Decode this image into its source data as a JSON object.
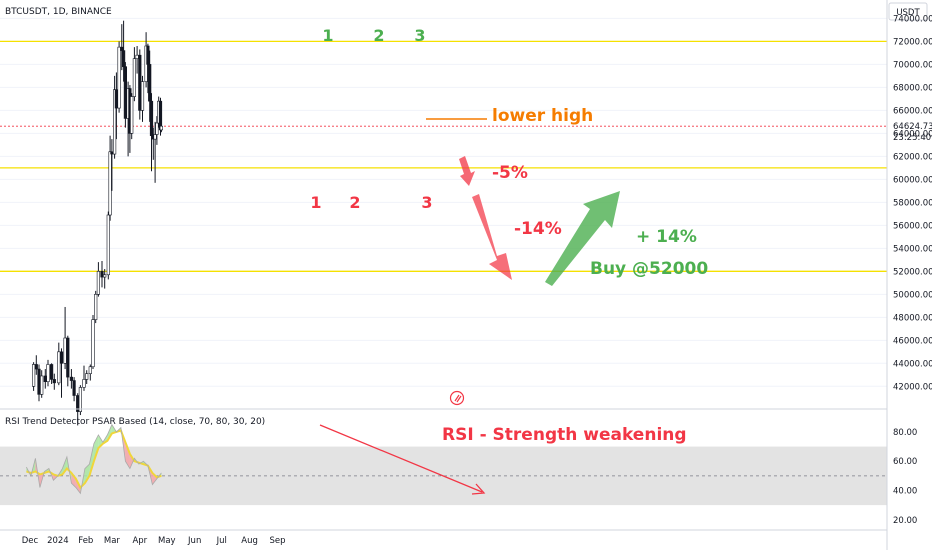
{
  "header": {
    "symbol_title": "BTCUSDT, 1D, BINANCE",
    "currency": "USDT",
    "countdown": "23:25:40"
  },
  "colors": {
    "bull": "#131722",
    "bear": "#131722",
    "level": "#f5e100",
    "green": "#4caf50",
    "red": "#f23645",
    "orange": "#f57c00",
    "rsi_line": "#f0d63a",
    "band": "#e3e3e3"
  },
  "chart_data": [
    {
      "type": "candlestick",
      "title": "BTCUSDT, 1D, BINANCE",
      "y_unit": "USDT",
      "ylim": [
        40200,
        75600
      ],
      "y_ticks": [
        42000,
        44000,
        46000,
        48000,
        50000,
        52000,
        54000,
        56000,
        58000,
        60000,
        62000,
        64000,
        66000,
        68000,
        70000,
        72000,
        74000
      ],
      "x_ticks": [
        "Dec",
        "2024",
        "Feb",
        "Mar",
        "Apr",
        "May",
        "Jun",
        "Jul",
        "Aug",
        "Sep"
      ],
      "last_price": 64624.73,
      "horizontal_levels": [
        72000,
        61000,
        52000
      ],
      "candles": [
        {
          "date": "2023-12-05",
          "o": 42000,
          "h": 44100,
          "l": 41600,
          "c": 43900
        },
        {
          "date": "2023-12-08",
          "o": 43900,
          "h": 44700,
          "l": 43000,
          "c": 43500
        },
        {
          "date": "2023-12-11",
          "o": 43500,
          "h": 43900,
          "l": 40700,
          "c": 41300
        },
        {
          "date": "2023-12-14",
          "o": 41300,
          "h": 43400,
          "l": 41000,
          "c": 42900
        },
        {
          "date": "2023-12-18",
          "o": 42900,
          "h": 43500,
          "l": 41800,
          "c": 42400
        },
        {
          "date": "2023-12-21",
          "o": 42400,
          "h": 44300,
          "l": 42000,
          "c": 43900
        },
        {
          "date": "2023-12-25",
          "o": 43900,
          "h": 44000,
          "l": 42200,
          "c": 42600
        },
        {
          "date": "2023-12-28",
          "o": 42600,
          "h": 43100,
          "l": 41700,
          "c": 42300
        },
        {
          "date": "2024-01-02",
          "o": 42300,
          "h": 45800,
          "l": 42100,
          "c": 45000
        },
        {
          "date": "2024-01-05",
          "o": 45000,
          "h": 45300,
          "l": 41000,
          "c": 44000
        },
        {
          "date": "2024-01-09",
          "o": 44000,
          "h": 48900,
          "l": 43500,
          "c": 46200
        },
        {
          "date": "2024-01-12",
          "o": 46200,
          "h": 46400,
          "l": 42000,
          "c": 42800
        },
        {
          "date": "2024-01-16",
          "o": 42800,
          "h": 43500,
          "l": 41800,
          "c": 42500
        },
        {
          "date": "2024-01-19",
          "o": 42500,
          "h": 42800,
          "l": 40700,
          "c": 41200
        },
        {
          "date": "2024-01-23",
          "o": 41200,
          "h": 41400,
          "l": 38600,
          "c": 39800
        },
        {
          "date": "2024-01-26",
          "o": 39800,
          "h": 42100,
          "l": 39500,
          "c": 41900
        },
        {
          "date": "2024-01-30",
          "o": 41900,
          "h": 43800,
          "l": 41600,
          "c": 42600
        },
        {
          "date": "2024-02-02",
          "o": 42600,
          "h": 43400,
          "l": 42200,
          "c": 43100
        },
        {
          "date": "2024-02-06",
          "o": 43100,
          "h": 43900,
          "l": 42500,
          "c": 43700
        },
        {
          "date": "2024-02-09",
          "o": 43700,
          "h": 48200,
          "l": 43500,
          "c": 47800
        },
        {
          "date": "2024-02-12",
          "o": 47800,
          "h": 50300,
          "l": 47500,
          "c": 50000
        },
        {
          "date": "2024-02-15",
          "o": 50000,
          "h": 52800,
          "l": 49800,
          "c": 52000
        },
        {
          "date": "2024-02-19",
          "o": 52000,
          "h": 52900,
          "l": 50600,
          "c": 51500
        },
        {
          "date": "2024-02-22",
          "o": 51500,
          "h": 52200,
          "l": 50500,
          "c": 51700
        },
        {
          "date": "2024-02-26",
          "o": 51700,
          "h": 57200,
          "l": 51300,
          "c": 56900
        },
        {
          "date": "2024-02-28",
          "o": 56900,
          "h": 63800,
          "l": 56400,
          "c": 62400
        },
        {
          "date": "2024-03-01",
          "o": 62400,
          "h": 63500,
          "l": 59000,
          "c": 62200
        },
        {
          "date": "2024-03-04",
          "o": 62200,
          "h": 69000,
          "l": 61800,
          "c": 67800
        },
        {
          "date": "2024-03-06",
          "o": 67800,
          "h": 69300,
          "l": 63500,
          "c": 66200
        },
        {
          "date": "2024-03-09",
          "o": 66200,
          "h": 72000,
          "l": 65800,
          "c": 71500
        },
        {
          "date": "2024-03-12",
          "o": 71500,
          "h": 73500,
          "l": 69500,
          "c": 71200
        },
        {
          "date": "2024-03-14",
          "o": 71200,
          "h": 73800,
          "l": 68500,
          "c": 69800
        },
        {
          "date": "2024-03-16",
          "o": 69800,
          "h": 70200,
          "l": 64500,
          "c": 65300
        },
        {
          "date": "2024-03-19",
          "o": 65300,
          "h": 68500,
          "l": 62000,
          "c": 67900
        },
        {
          "date": "2024-03-21",
          "o": 67900,
          "h": 68200,
          "l": 62300,
          "c": 64000
        },
        {
          "date": "2024-03-23",
          "o": 64000,
          "h": 67500,
          "l": 63500,
          "c": 67200
        },
        {
          "date": "2024-03-26",
          "o": 67200,
          "h": 71500,
          "l": 66800,
          "c": 70500
        },
        {
          "date": "2024-03-29",
          "o": 70500,
          "h": 71600,
          "l": 69200,
          "c": 70800
        },
        {
          "date": "2024-04-01",
          "o": 70800,
          "h": 71300,
          "l": 65200,
          "c": 66000
        },
        {
          "date": "2024-04-04",
          "o": 66000,
          "h": 69000,
          "l": 65000,
          "c": 68500
        },
        {
          "date": "2024-04-08",
          "o": 68500,
          "h": 72800,
          "l": 68000,
          "c": 71600
        },
        {
          "date": "2024-04-10",
          "o": 71600,
          "h": 71800,
          "l": 67500,
          "c": 70000
        },
        {
          "date": "2024-04-12",
          "o": 70000,
          "h": 71200,
          "l": 65000,
          "c": 66800
        },
        {
          "date": "2024-04-14",
          "o": 66800,
          "h": 67500,
          "l": 60700,
          "c": 63800
        },
        {
          "date": "2024-04-16",
          "o": 63800,
          "h": 64500,
          "l": 61700,
          "c": 63500
        },
        {
          "date": "2024-04-18",
          "o": 63500,
          "h": 65000,
          "l": 59700,
          "c": 63900
        },
        {
          "date": "2024-04-20",
          "o": 63900,
          "h": 65500,
          "l": 63000,
          "c": 64900
        },
        {
          "date": "2024-04-22",
          "o": 64900,
          "h": 67200,
          "l": 64500,
          "c": 66800
        },
        {
          "date": "2024-04-24",
          "o": 66800,
          "h": 67100,
          "l": 63800,
          "c": 64300
        },
        {
          "date": "2024-04-25",
          "o": 64300,
          "h": 65300,
          "l": 64100,
          "c": 64624.73
        }
      ]
    },
    {
      "type": "line",
      "title": "RSI Trend Detector PSAR Based (14, close, 70, 80, 30, 20)",
      "ylim": [
        13,
        95
      ],
      "y_ticks": [
        20,
        40,
        60,
        80
      ],
      "band": [
        30,
        70
      ],
      "midline": 50,
      "series": [
        {
          "values": [
            {
              "date": "2023-11-27",
              "rsi": 56,
              "sig": 53
            },
            {
              "date": "2023-12-02",
              "rsi": 50,
              "sig": 52
            },
            {
              "date": "2023-12-07",
              "rsi": 62,
              "sig": 53
            },
            {
              "date": "2023-12-12",
              "rsi": 42,
              "sig": 51
            },
            {
              "date": "2023-12-17",
              "rsi": 53,
              "sig": 52
            },
            {
              "date": "2023-12-22",
              "rsi": 55,
              "sig": 53
            },
            {
              "date": "2023-12-27",
              "rsi": 47,
              "sig": 51
            },
            {
              "date": "2024-01-01",
              "rsi": 50,
              "sig": 50
            },
            {
              "date": "2024-01-06",
              "rsi": 55,
              "sig": 51
            },
            {
              "date": "2024-01-11",
              "rsi": 63,
              "sig": 55
            },
            {
              "date": "2024-01-16",
              "rsi": 45,
              "sig": 52
            },
            {
              "date": "2024-01-21",
              "rsi": 42,
              "sig": 48
            },
            {
              "date": "2024-01-26",
              "rsi": 38,
              "sig": 42
            },
            {
              "date": "2024-01-31",
              "rsi": 55,
              "sig": 45
            },
            {
              "date": "2024-02-05",
              "rsi": 58,
              "sig": 50
            },
            {
              "date": "2024-02-10",
              "rsi": 72,
              "sig": 60
            },
            {
              "date": "2024-02-15",
              "rsi": 78,
              "sig": 69
            },
            {
              "date": "2024-02-20",
              "rsi": 73,
              "sig": 72
            },
            {
              "date": "2024-02-25",
              "rsi": 78,
              "sig": 74
            },
            {
              "date": "2024-03-01",
              "rsi": 85,
              "sig": 79
            },
            {
              "date": "2024-03-06",
              "rsi": 80,
              "sig": 80
            },
            {
              "date": "2024-03-11",
              "rsi": 83,
              "sig": 81
            },
            {
              "date": "2024-03-16",
              "rsi": 60,
              "sig": 73
            },
            {
              "date": "2024-03-21",
              "rsi": 55,
              "sig": 65
            },
            {
              "date": "2024-03-26",
              "rsi": 62,
              "sig": 60
            },
            {
              "date": "2024-03-31",
              "rsi": 58,
              "sig": 59
            },
            {
              "date": "2024-04-05",
              "rsi": 60,
              "sig": 58
            },
            {
              "date": "2024-04-10",
              "rsi": 57,
              "sig": 57
            },
            {
              "date": "2024-04-15",
              "rsi": 44,
              "sig": 52
            },
            {
              "date": "2024-04-20",
              "rsi": 48,
              "sig": 49
            },
            {
              "date": "2024-04-25",
              "rsi": 52,
              "sig": 50
            }
          ]
        }
      ]
    }
  ],
  "annotations": {
    "lower_high": "lower high",
    "pct_5": "-5%",
    "pct_14_down": "-14%",
    "pct_14_up": "+ 14%",
    "buy": "Buy @52000",
    "rsi_weakening": "RSI - Strength weakening",
    "top_1": "1",
    "top_2": "2",
    "top_3": "3",
    "bottom_1": "1",
    "bottom_2": "2",
    "bottom_3": "3"
  }
}
